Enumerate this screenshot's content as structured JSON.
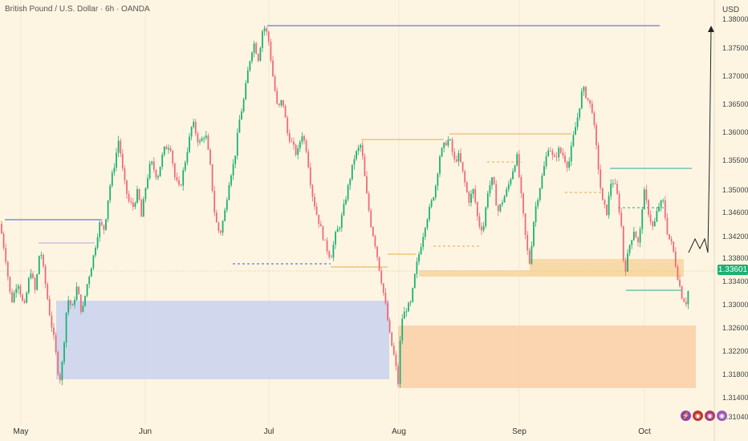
{
  "header": {
    "title": "British Pound / U.S. Dollar · 6h · OANDA",
    "currency": "USD"
  },
  "current_price": "1.33601",
  "colors": {
    "background": "#fdf5e2",
    "up_candle": "#1db073",
    "down_candle": "#ef6a7a",
    "demand_zone_blue": "#c9d2ef",
    "demand_zone_orange": "#f9cfa6",
    "resistance_line": "#3d5bd9",
    "level_line_gold": "#e7b040",
    "level_line_green": "#26a69a"
  },
  "icons": [
    "lightning-icon",
    "flag-icon-1",
    "flag-icon-2",
    "flag-icon-3"
  ],
  "chart_data": {
    "type": "candlestick",
    "ylim": [
      1.31,
      1.38
    ],
    "y_ticks": [
      "1.38000",
      "1.37500",
      "1.37000",
      "1.36500",
      "1.36000",
      "1.35500",
      "1.35000",
      "1.34600",
      "1.34200",
      "1.33800",
      "1.33400",
      "1.33000",
      "1.32600",
      "1.32200",
      "1.31800",
      "1.31400",
      "1.31040"
    ],
    "x_ticks": [
      "May",
      "Jun",
      "Jul",
      "Aug",
      "Sep",
      "Oct"
    ],
    "price_path": [
      [
        0,
        1.344
      ],
      [
        7,
        1.338
      ],
      [
        14,
        1.33
      ],
      [
        22,
        1.334
      ],
      [
        30,
        1.329
      ],
      [
        38,
        1.336
      ],
      [
        44,
        1.332
      ],
      [
        50,
        1.34
      ],
      [
        56,
        1.334
      ],
      [
        62,
        1.328
      ],
      [
        68,
        1.323
      ],
      [
        74,
        1.316
      ],
      [
        78,
        1.32
      ],
      [
        84,
        1.331
      ],
      [
        90,
        1.329
      ],
      [
        96,
        1.333
      ],
      [
        102,
        1.328
      ],
      [
        108,
        1.333
      ],
      [
        116,
        1.338
      ],
      [
        124,
        1.344
      ],
      [
        130,
        1.343
      ],
      [
        136,
        1.35
      ],
      [
        142,
        1.354
      ],
      [
        148,
        1.359
      ],
      [
        154,
        1.352
      ],
      [
        160,
        1.348
      ],
      [
        166,
        1.347
      ],
      [
        172,
        1.35
      ],
      [
        176,
        1.345
      ],
      [
        182,
        1.351
      ],
      [
        188,
        1.355
      ],
      [
        196,
        1.352
      ],
      [
        204,
        1.357
      ],
      [
        212,
        1.358
      ],
      [
        218,
        1.352
      ],
      [
        224,
        1.35
      ],
      [
        232,
        1.356
      ],
      [
        240,
        1.362
      ],
      [
        248,
        1.358
      ],
      [
        256,
        1.36
      ],
      [
        262,
        1.354
      ],
      [
        268,
        1.345
      ],
      [
        274,
        1.342
      ],
      [
        280,
        1.346
      ],
      [
        286,
        1.352
      ],
      [
        292,
        1.355
      ],
      [
        298,
        1.362
      ],
      [
        304,
        1.366
      ],
      [
        310,
        1.372
      ],
      [
        316,
        1.376
      ],
      [
        322,
        1.373
      ],
      [
        328,
        1.379
      ],
      [
        334,
        1.377
      ],
      [
        340,
        1.37
      ],
      [
        346,
        1.364
      ],
      [
        352,
        1.366
      ],
      [
        358,
        1.36
      ],
      [
        364,
        1.358
      ],
      [
        370,
        1.356
      ],
      [
        376,
        1.36
      ],
      [
        382,
        1.357
      ],
      [
        388,
        1.35
      ],
      [
        394,
        1.346
      ],
      [
        400,
        1.343
      ],
      [
        406,
        1.34
      ],
      [
        412,
        1.338
      ],
      [
        418,
        1.342
      ],
      [
        424,
        1.344
      ],
      [
        430,
        1.348
      ],
      [
        436,
        1.352
      ],
      [
        442,
        1.356
      ],
      [
        450,
        1.358
      ],
      [
        456,
        1.35
      ],
      [
        462,
        1.344
      ],
      [
        468,
        1.34
      ],
      [
        474,
        1.335
      ],
      [
        480,
        1.33
      ],
      [
        486,
        1.324
      ],
      [
        492,
        1.32
      ],
      [
        496,
        1.316
      ],
      [
        500,
        1.327
      ],
      [
        506,
        1.329
      ],
      [
        512,
        1.33
      ],
      [
        518,
        1.336
      ],
      [
        524,
        1.34
      ],
      [
        530,
        1.344
      ],
      [
        536,
        1.347
      ],
      [
        542,
        1.35
      ],
      [
        548,
        1.356
      ],
      [
        554,
        1.358
      ],
      [
        560,
        1.359
      ],
      [
        566,
        1.355
      ],
      [
        572,
        1.356
      ],
      [
        578,
        1.352
      ],
      [
        584,
        1.348
      ],
      [
        590,
        1.35
      ],
      [
        596,
        1.344
      ],
      [
        602,
        1.343
      ],
      [
        608,
        1.35
      ],
      [
        614,
        1.352
      ],
      [
        620,
        1.346
      ],
      [
        626,
        1.348
      ],
      [
        632,
        1.35
      ],
      [
        638,
        1.353
      ],
      [
        644,
        1.356
      ],
      [
        650,
        1.348
      ],
      [
        656,
        1.34
      ],
      [
        660,
        1.337
      ],
      [
        666,
        1.346
      ],
      [
        672,
        1.35
      ],
      [
        678,
        1.354
      ],
      [
        684,
        1.358
      ],
      [
        690,
        1.355
      ],
      [
        696,
        1.357
      ],
      [
        702,
        1.356
      ],
      [
        708,
        1.354
      ],
      [
        714,
        1.359
      ],
      [
        720,
        1.363
      ],
      [
        726,
        1.368
      ],
      [
        732,
        1.366
      ],
      [
        738,
        1.364
      ],
      [
        744,
        1.356
      ],
      [
        750,
        1.348
      ],
      [
        756,
        1.346
      ],
      [
        762,
        1.352
      ],
      [
        768,
        1.35
      ],
      [
        774,
        1.344
      ],
      [
        778,
        1.335
      ],
      [
        784,
        1.34
      ],
      [
        790,
        1.343
      ],
      [
        796,
        1.34
      ],
      [
        802,
        1.35
      ],
      [
        808,
        1.346
      ],
      [
        814,
        1.343
      ],
      [
        820,
        1.347
      ],
      [
        826,
        1.348
      ],
      [
        832,
        1.342
      ],
      [
        838,
        1.34
      ],
      [
        844,
        1.335
      ],
      [
        850,
        1.331
      ],
      [
        856,
        1.33
      ],
      [
        860,
        1.336
      ]
    ]
  }
}
